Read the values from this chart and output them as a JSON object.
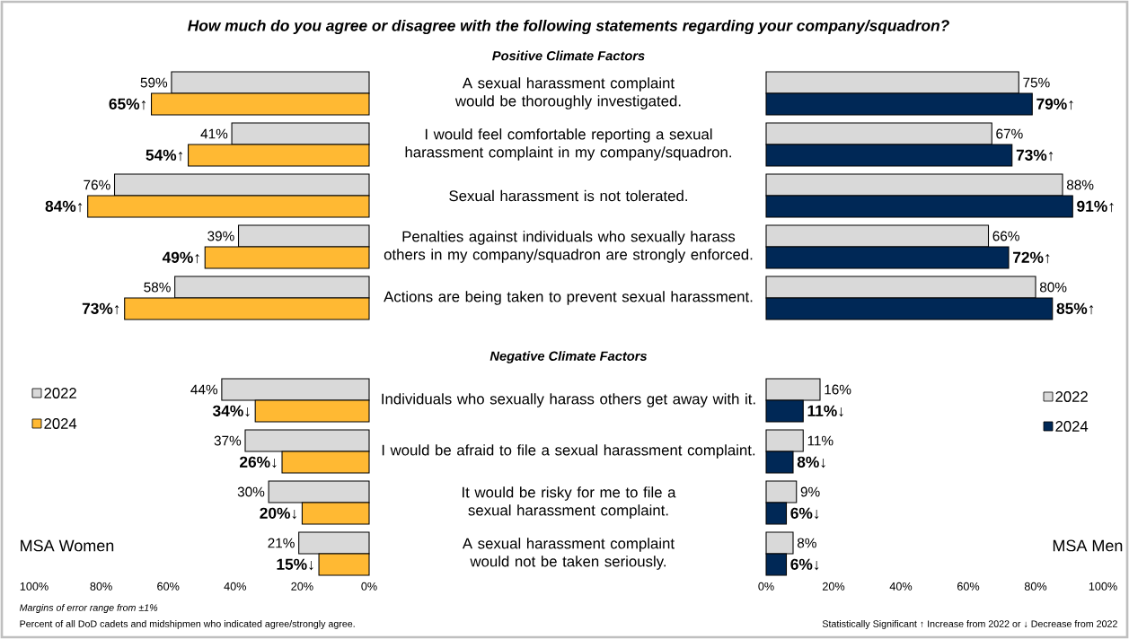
{
  "chart_data": [
    {
      "type": "bar",
      "orientation": "horizontal",
      "title": "How much do you agree or disagree with the following statements regarding your company/squadron?",
      "categories": [
        "A sexual harassment complaint would be thoroughly investigated.",
        "I would feel comfortable reporting a sexual harassment complaint in my company/squadron.",
        "Sexual harassment is not tolerated.",
        "Penalties against individuals who sexually harass others in my company/squadron are strongly enforced.",
        "Actions are being taken to prevent sexual harassment."
      ],
      "series": [
        {
          "color": "#d9d9d9",
          "values": [
            59,
            41,
            76,
            39,
            58
          ],
          "value_labels": [
            "59%",
            "41%",
            "76%",
            "39%",
            "58%"
          ]
        },
        {
          "color": "#ffb933",
          "values": [
            65,
            54,
            84,
            49,
            73
          ],
          "value_labels": [
            "65%↑",
            "54%↑",
            "84%↑",
            "49%↑",
            "73%↑"
          ]
        }
      ],
      "xlim": [
        100,
        0
      ],
      "xticks": [
        {
          "value": 100,
          "label": null
        },
        {
          "value": 80,
          "label": null
        },
        {
          "value": 60,
          "label": null
        },
        {
          "value": 40,
          "label": null
        },
        {
          "value": 20,
          "label": null
        },
        {
          "value": 0,
          "label": null
        }
      ],
      "tick_labels": "y",
      "annotations": [
        "Positive Climate Factors"
      ]
    },
    {
      "type": "bar",
      "orientation": "horizontal",
      "categories": [
        null,
        null,
        null,
        null,
        null
      ],
      "series": [
        {
          "color": "#d9d9d9",
          "values": [
            75,
            67,
            88,
            66,
            80
          ],
          "value_labels": [
            "75%",
            "67%",
            "88%",
            "66%",
            "80%"
          ]
        },
        {
          "color": "#002856",
          "values": [
            79,
            73,
            91,
            72,
            85
          ],
          "value_labels": [
            "79%↑",
            "73%↑",
            "91%↑",
            "72%↑",
            "85%↑"
          ]
        }
      ],
      "xlim": [
        0,
        100
      ],
      "xticks": [
        {
          "value": 0,
          "label": null
        },
        {
          "value": 20,
          "label": null
        },
        {
          "value": 40,
          "label": null
        },
        {
          "value": 60,
          "label": null
        },
        {
          "value": 80,
          "label": null
        },
        {
          "value": 100,
          "label": null
        }
      ],
      "tick_labels": false
    },
    {
      "type": "bar",
      "orientation": "horizontal",
      "categories": [
        "Individuals who sexually harass others get away with it.",
        "I would be afraid to file a sexual harassment complaint.",
        "It would be risky for me to file a sexual harassment complaint.",
        "A sexual harassment complaint would not be taken seriously."
      ],
      "series": [
        {
          "name": "2022",
          "color": "#d9d9d9",
          "values": [
            44,
            37,
            30,
            21
          ],
          "value_labels": [
            "44%",
            "37%",
            "30%",
            "21%"
          ]
        },
        {
          "name": "2024",
          "color": "#ffb933",
          "values": [
            34,
            26,
            20,
            15
          ],
          "value_labels": [
            "34%↓",
            "26%↓",
            "20%↓",
            "15%↓"
          ]
        }
      ],
      "xlim": [
        100,
        0
      ],
      "xticks": [
        {
          "value": 100,
          "label": "100%"
        },
        {
          "value": 80,
          "label": "80%"
        },
        {
          "value": 60,
          "label": "60%"
        },
        {
          "value": 40,
          "label": "40%"
        },
        {
          "value": 20,
          "label": "20%"
        },
        {
          "value": 0,
          "label": "0%"
        }
      ],
      "legend": "left",
      "annotations": [
        "Negative Climate Factors",
        "MSA Women",
        "Margins of error range from ±1%",
        "Percent of all DoD cadets and midshipmen who indicated agree/strongly agree."
      ]
    },
    {
      "type": "bar",
      "orientation": "horizontal",
      "categories": [
        null,
        null,
        null,
        null
      ],
      "series": [
        {
          "name": "2022",
          "color": "#d9d9d9",
          "values": [
            16,
            11,
            9,
            8
          ],
          "value_labels": [
            "16%",
            "11%",
            "9%",
            "8%"
          ]
        },
        {
          "name": "2024",
          "color": "#002856",
          "values": [
            11,
            8,
            6,
            6
          ],
          "value_labels": [
            "11%↓",
            "8%↓",
            "6%↓",
            "6%↓"
          ]
        }
      ],
      "xlim": [
        0,
        100
      ],
      "xticks": [
        {
          "value": 0,
          "label": "0%"
        },
        {
          "value": 20,
          "label": "20%"
        },
        {
          "value": 40,
          "label": "40%"
        },
        {
          "value": 60,
          "label": "60%"
        },
        {
          "value": 80,
          "label": "80%"
        },
        {
          "value": 100,
          "label": "100%"
        }
      ],
      "tick_labels": "x",
      "legend": "right",
      "annotations": [
        "MSA Men",
        "Statistically Significant ↑ Increase from 2022 or ↓ Decrease from 2022"
      ]
    }
  ]
}
